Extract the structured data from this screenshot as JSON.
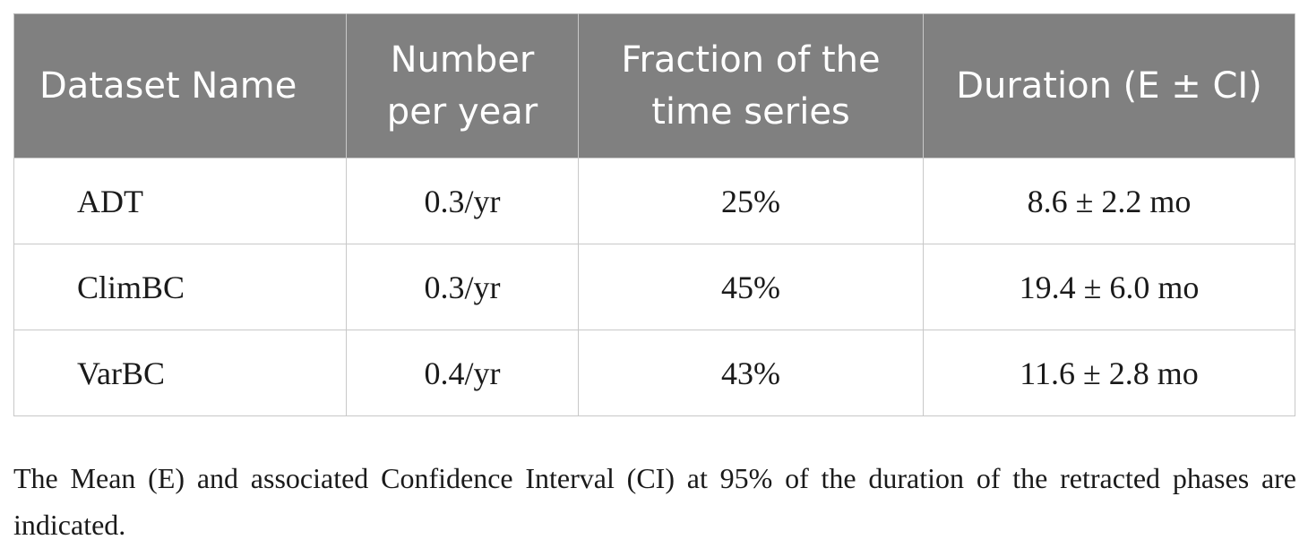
{
  "table": {
    "headers": [
      "Dataset Name",
      "Number per year",
      "Fraction of the time series",
      "Duration (E ± CI)"
    ],
    "rows": [
      [
        "ADT",
        "0.3/yr",
        "25%",
        "8.6 ± 2.2 mo"
      ],
      [
        "ClimBC",
        "0.3/yr",
        "45%",
        "19.4 ± 6.0 mo"
      ],
      [
        "VarBC",
        "0.4/yr",
        "43%",
        "11.6 ± 2.8 mo"
      ]
    ]
  },
  "caption": "The Mean (E) and associated Confidence Interval (CI) at 95% of the duration of the retracted phases are indicated.",
  "colors": {
    "header_background": "#808080",
    "header_text": "#ffffff",
    "grid_lines": "#c8c8c8"
  }
}
